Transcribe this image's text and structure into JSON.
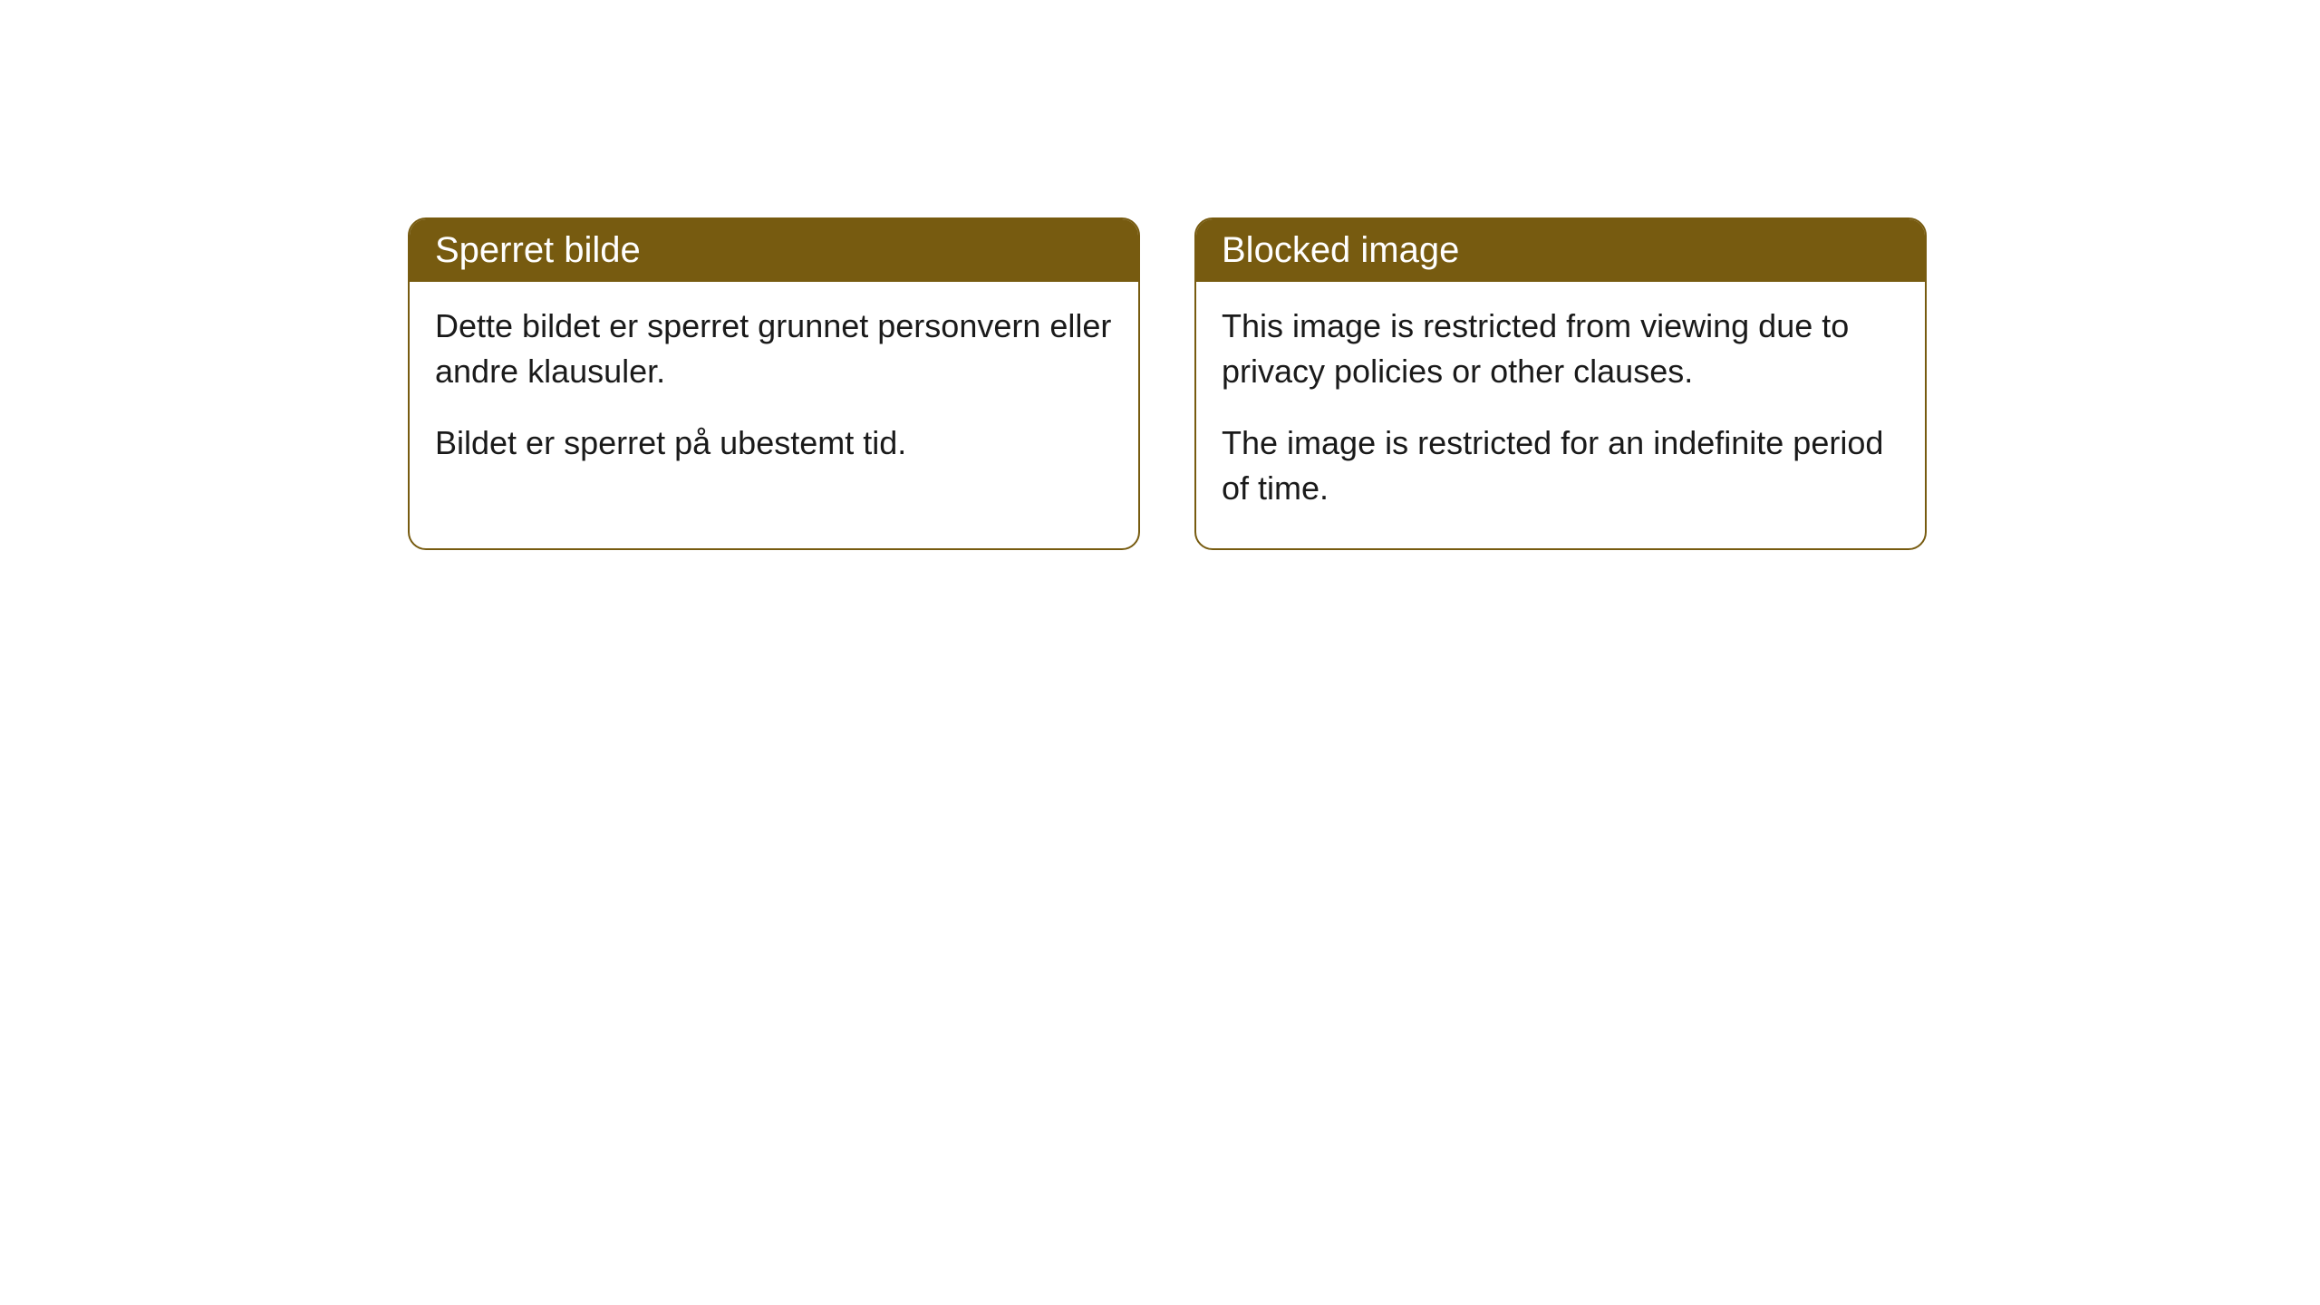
{
  "cards": [
    {
      "title": "Sperret bilde",
      "paragraph1": "Dette bildet er sperret grunnet personvern eller andre klausuler.",
      "paragraph2": "Bildet er sperret på ubestemt tid."
    },
    {
      "title": "Blocked image",
      "paragraph1": "This image is restricted from viewing due to privacy policies or other clauses.",
      "paragraph2": "The image is restricted for an indefinite period of time."
    }
  ],
  "styling": {
    "header_background": "#775b10",
    "header_text_color": "#ffffff",
    "border_color": "#775b10",
    "body_background": "#ffffff",
    "body_text_color": "#1a1a1a",
    "border_radius": 20,
    "title_fontsize": 40,
    "body_fontsize": 36
  }
}
